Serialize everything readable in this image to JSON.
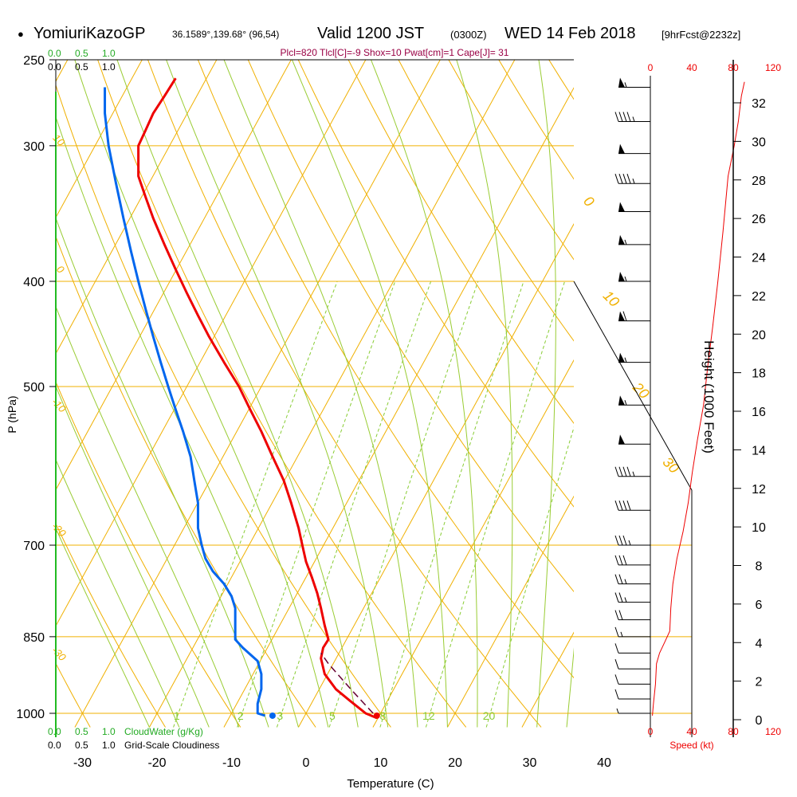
{
  "header": {
    "bullet": "●",
    "station": "YomiuriKazoGP",
    "coords": "36.1589°,139.68° (96,54)",
    "valid": "Valid 1200 JST",
    "utc": "(0300Z)",
    "date": "WED 14 Feb 2018",
    "fcst": "[9hrFcst@2232z]",
    "params": "Plcl=820 Tlcl[C]=-9 Shox=10 Pwat[cm]=1 Cape[J]= 31"
  },
  "scales": {
    "cloudwater_ticks": [
      "0.0",
      "0.5",
      "1.0"
    ],
    "cloudiness_ticks": [
      "0.0",
      "0.5",
      "1.0"
    ],
    "cloudwater_label": "CloudWater (g/Kg)",
    "cloudiness_label": "Grid-Scale Cloudiness",
    "speed_ticks": [
      "0",
      "40",
      "80",
      "120"
    ],
    "speed_label": "Speed (kt)"
  },
  "colors": {
    "temperature": "#ee0000",
    "dewpoint": "#0066ee",
    "isotherm": "#f0b000",
    "mixing_ratio": "#88cc33",
    "moist_adiabat": "#99cc33",
    "cloudwater": "#22aa22",
    "params": "#990044",
    "speed": "#ee0000"
  },
  "chart_data": {
    "type": "line",
    "xlabel": "Temperature (C)",
    "ylabel": "P (hPa)",
    "y2label": "Height (1000 Feet)",
    "xlim": [
      -35,
      45
    ],
    "ylim": [
      1030,
      250
    ],
    "y_scale": "log",
    "x_ticks": [
      -30,
      -20,
      -10,
      0,
      10,
      20,
      30,
      40
    ],
    "y_ticks": [
      250,
      300,
      400,
      500,
      700,
      850,
      1000
    ],
    "height_ticks": [
      0,
      2,
      4,
      6,
      8,
      10,
      12,
      14,
      16,
      18,
      20,
      22,
      24,
      26,
      28,
      30,
      32
    ],
    "isotherm_labels": [
      {
        "text": "10",
        "x": -33.5,
        "p": 298
      },
      {
        "text": "0",
        "x": -33.3,
        "p": 392
      },
      {
        "text": "-10",
        "x": -33.5,
        "p": 523
      },
      {
        "text": "-20",
        "x": -33.5,
        "p": 681
      },
      {
        "text": "-30",
        "x": -33.5,
        "p": 886
      },
      {
        "text": "0",
        "x": 37.5,
        "p": 340
      },
      {
        "text": "10",
        "x": 40.5,
        "p": 418
      },
      {
        "text": "20",
        "x": 44.5,
        "p": 508
      },
      {
        "text": "30",
        "x": 48.5,
        "p": 595
      }
    ],
    "mixing_ratio_labels": [
      "1",
      "2",
      "3",
      "5",
      "8",
      "12",
      "20"
    ],
    "series": [
      {
        "name": "temperature",
        "points": [
          [
            9.5,
            1010
          ],
          [
            8.0,
            1000
          ],
          [
            6.0,
            975
          ],
          [
            4.0,
            950
          ],
          [
            2.5,
            920
          ],
          [
            2.0,
            890
          ],
          [
            2.3,
            870
          ],
          [
            3.0,
            855
          ],
          [
            2.5,
            830
          ],
          [
            2.0,
            800
          ],
          [
            1.5,
            775
          ],
          [
            0.8,
            750
          ],
          [
            0.0,
            725
          ],
          [
            -0.5,
            700
          ],
          [
            -1.0,
            675
          ],
          [
            -2.0,
            640
          ],
          [
            -3.0,
            610
          ],
          [
            -4.5,
            580
          ],
          [
            -6.0,
            550
          ],
          [
            -7.5,
            525
          ],
          [
            -9.0,
            500
          ],
          [
            -11.0,
            475
          ],
          [
            -13.0,
            450
          ],
          [
            -14.5,
            430
          ],
          [
            -16.0,
            410
          ],
          [
            -17.5,
            390
          ],
          [
            -19.0,
            370
          ],
          [
            -20.5,
            350
          ],
          [
            -21.5,
            335
          ],
          [
            -22.5,
            320
          ],
          [
            -22.5,
            310
          ],
          [
            -22.5,
            300
          ],
          [
            -21.5,
            290
          ],
          [
            -20.5,
            280
          ],
          [
            -19.0,
            270
          ],
          [
            -17.5,
            260
          ]
        ]
      },
      {
        "name": "dewpoint",
        "points": [
          [
            -5.5,
            1005
          ],
          [
            -6.5,
            1000
          ],
          [
            -6.5,
            980
          ],
          [
            -6.0,
            950
          ],
          [
            -6.0,
            920
          ],
          [
            -6.5,
            895
          ],
          [
            -8.5,
            870
          ],
          [
            -9.5,
            855
          ],
          [
            -9.5,
            830
          ],
          [
            -9.5,
            800
          ],
          [
            -10.0,
            780
          ],
          [
            -11.0,
            760
          ],
          [
            -12.5,
            740
          ],
          [
            -13.5,
            720
          ],
          [
            -14.0,
            700
          ],
          [
            -14.5,
            675
          ],
          [
            -14.5,
            640
          ],
          [
            -15.0,
            610
          ],
          [
            -15.5,
            580
          ],
          [
            -16.5,
            550
          ],
          [
            -17.5,
            525
          ],
          [
            -18.5,
            500
          ],
          [
            -19.5,
            475
          ],
          [
            -20.5,
            450
          ],
          [
            -21.5,
            425
          ],
          [
            -22.5,
            400
          ],
          [
            -23.5,
            375
          ],
          [
            -24.5,
            350
          ],
          [
            -25.5,
            325
          ],
          [
            -26.5,
            300
          ],
          [
            -27.0,
            280
          ],
          [
            -27.0,
            265
          ]
        ]
      }
    ],
    "parcel": {
      "points": [
        [
          9.0,
          1000
        ],
        [
          6.0,
          950
        ],
        [
          3.0,
          900
        ],
        [
          2.0,
          880
        ]
      ]
    },
    "surface_dewpoint": {
      "x": -4.5,
      "p": 1005
    },
    "surface_temperature": {
      "x": 9.5,
      "p": 1005
    },
    "wind_barbs": [
      {
        "p": 265,
        "speed": 55
      },
      {
        "p": 285,
        "speed": 45
      },
      {
        "p": 305,
        "speed": 50
      },
      {
        "p": 325,
        "speed": 45
      },
      {
        "p": 345,
        "speed": 50
      },
      {
        "p": 370,
        "speed": 55
      },
      {
        "p": 400,
        "speed": 55
      },
      {
        "p": 435,
        "speed": 60
      },
      {
        "p": 475,
        "speed": 55
      },
      {
        "p": 520,
        "speed": 55
      },
      {
        "p": 565,
        "speed": 50
      },
      {
        "p": 605,
        "speed": 45
      },
      {
        "p": 650,
        "speed": 40
      },
      {
        "p": 700,
        "speed": 35
      },
      {
        "p": 730,
        "speed": 30
      },
      {
        "p": 760,
        "speed": 25
      },
      {
        "p": 790,
        "speed": 25
      },
      {
        "p": 820,
        "speed": 20
      },
      {
        "p": 850,
        "speed": 15
      },
      {
        "p": 880,
        "speed": 10
      },
      {
        "p": 910,
        "speed": 10
      },
      {
        "p": 940,
        "speed": 10
      },
      {
        "p": 970,
        "speed": 10
      },
      {
        "p": 1000,
        "speed": 5
      }
    ],
    "speed_profile": {
      "xlim": [
        0,
        120
      ],
      "points": [
        [
          2,
          1005
        ],
        [
          3,
          980
        ],
        [
          5,
          940
        ],
        [
          6,
          900
        ],
        [
          9,
          880
        ],
        [
          14,
          860
        ],
        [
          19,
          840
        ],
        [
          20,
          800
        ],
        [
          22,
          760
        ],
        [
          26,
          720
        ],
        [
          32,
          680
        ],
        [
          37,
          640
        ],
        [
          41,
          600
        ],
        [
          46,
          560
        ],
        [
          52,
          520
        ],
        [
          56,
          480
        ],
        [
          61,
          440
        ],
        [
          66,
          400
        ],
        [
          71,
          360
        ],
        [
          76,
          320
        ],
        [
          82,
          300
        ],
        [
          86,
          285
        ],
        [
          89,
          270
        ],
        [
          92,
          262
        ]
      ]
    }
  }
}
